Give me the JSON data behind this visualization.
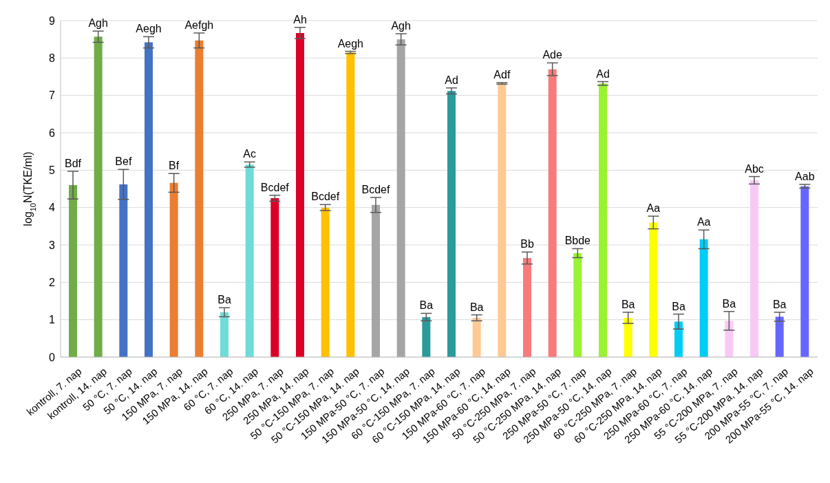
{
  "chart_data": {
    "type": "bar",
    "ylabel": "log$_{10}$N(TKE/ml)",
    "categories": [
      "kontroll, 7. nap",
      "kontroll, 14. nap",
      "50 °C, 7. nap",
      "50 °C, 14. nap",
      "150 MPa, 7. nap",
      "150 MPa, 14. nap",
      "60 °C, 7. nap",
      "60 °C, 14. nap",
      "250 MPa, 7. nap",
      "250 MPa, 14. nap",
      "50 °C-150 MPa, 7. nap",
      "50 °C-150 MPa, 14. nap",
      "150 MPa-50 °C, 7. nap",
      "150 MPa-50 °C, 14. nap",
      "60 °C-150 MPa, 7. nap",
      "60 °C-150 MPa, 14. nap",
      "150 MPa-60 °C, 7. nap",
      "150 MPa-60 °C, 14. nap",
      "50 °C-250 MPa, 7. nap",
      "50 °C-250 MPa, 14. nap",
      "250 MPa-50 °C, 7. nap",
      "250 MPa-50 °C, 14. nap",
      "60 °C-250 MPa, 7. nap",
      "60 °C-250 MPa, 14. nap",
      "250 MPa-60 °C, 7. nap",
      "250 MPa-60 °C, 14. nap",
      "55 °C-200 MPa, 7. nap",
      "55 °C-200 MPa, 14. nap",
      "200 MPa-55 °C, 7. nap",
      "200 MPa-55 °C, 14. nap"
    ],
    "values": [
      4.6,
      8.57,
      4.62,
      8.42,
      4.66,
      8.47,
      1.2,
      5.15,
      4.25,
      8.67,
      4.0,
      8.15,
      4.07,
      8.5,
      1.07,
      7.12,
      1.05,
      7.32,
      2.65,
      7.7,
      2.78,
      7.32,
      1.05,
      3.6,
      0.95,
      3.15,
      0.97,
      4.73,
      1.08,
      4.57
    ],
    "errors": [
      0.37,
      0.15,
      0.4,
      0.15,
      0.25,
      0.2,
      0.12,
      0.07,
      0.08,
      0.15,
      0.08,
      0.03,
      0.2,
      0.15,
      0.1,
      0.08,
      0.08,
      0.02,
      0.16,
      0.17,
      0.12,
      0.05,
      0.15,
      0.17,
      0.2,
      0.25,
      0.25,
      0.1,
      0.12,
      0.05
    ],
    "value_labels": [
      "Bdf",
      "Agh",
      "Bef",
      "Aegh",
      "Bf",
      "Aefgh",
      "Ba",
      "Ac",
      "Bcdef",
      "Ah",
      "Bcdef",
      "Aegh",
      "Bcdef",
      "Agh",
      "Ba",
      "Ad",
      "Ba",
      "Adf",
      "Bb",
      "Ade",
      "Bbde",
      "Ad",
      "Ba",
      "Aa",
      "Ba",
      "Aa",
      "Ba",
      "Abc",
      "Ba",
      "Aab"
    ],
    "colors": [
      "#70ad47",
      "#70ad47",
      "#4472c4",
      "#4472c4",
      "#ed7d31",
      "#ed7d31",
      "#6edcd8",
      "#6edcd8",
      "#dc0028",
      "#dc0028",
      "#ffc000",
      "#ffc000",
      "#a5a5a5",
      "#a5a5a5",
      "#2a9a9c",
      "#2a9a9c",
      "#ffc994",
      "#ffc994",
      "#f87b7b",
      "#f87b7b",
      "#99f232",
      "#99f232",
      "#ffff00",
      "#ffff00",
      "#00ccf5",
      "#00ccf5",
      "#f9c9f5",
      "#f9c9f5",
      "#6666ff",
      "#6666ff"
    ],
    "ylim": [
      0,
      9
    ],
    "yticks": [
      0,
      1,
      2,
      3,
      4,
      5,
      6,
      7,
      8,
      9
    ],
    "grid": "y"
  }
}
